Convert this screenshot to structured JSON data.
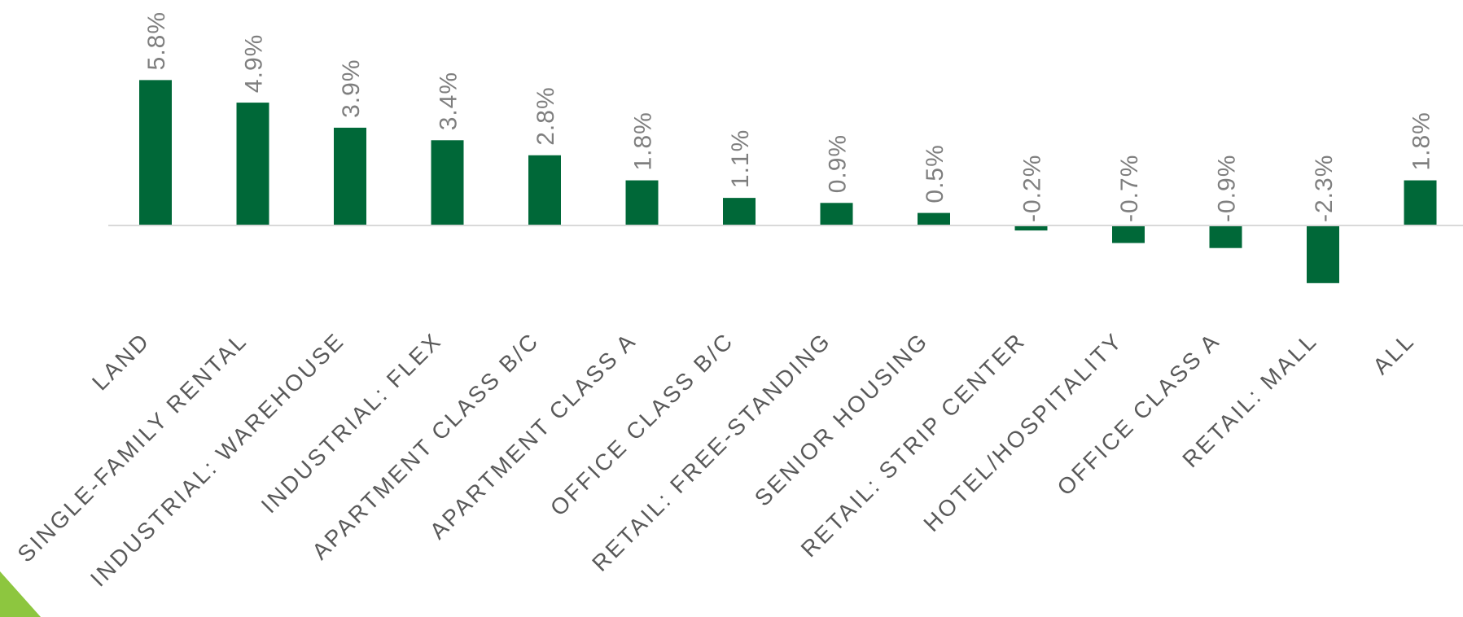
{
  "chart_data": {
    "type": "bar",
    "categories": [
      "LAND",
      "SINGLE-FAMILY RENTAL",
      "INDUSTRIAL: WAREHOUSE",
      "INDUSTRIAL: FLEX",
      "APARTMENT CLASS B/C",
      "APARTMENT CLASS A",
      "OFFICE CLASS B/C",
      "RETAIL: FREE-STANDING",
      "SENIOR HOUSING",
      "RETAIL: STRIP CENTER",
      "HOTEL/HOSPITALITY",
      "OFFICE CLASS A",
      "RETAIL: MALL",
      "ALL"
    ],
    "values": [
      5.8,
      4.9,
      3.9,
      3.4,
      2.8,
      1.8,
      1.1,
      0.9,
      0.5,
      -0.2,
      -0.7,
      -0.9,
      -2.3,
      1.8
    ],
    "data_labels": [
      "5.8%",
      "4.9%",
      "3.9%",
      "3.4%",
      "2.8%",
      "1.8%",
      "1.1%",
      "0.9%",
      "0.5%",
      "-0.2%",
      "-0.7%",
      "-0.9%",
      "-2.3%",
      "1.8%"
    ],
    "title": "",
    "xlabel": "",
    "ylabel": "",
    "ylim": [
      -2.3,
      5.8
    ],
    "grid": false,
    "legend": "none"
  },
  "colors": {
    "bar": "#006838",
    "label": "#7f7f7f",
    "tick": "#595959",
    "baseline": "#d9d9d9",
    "corner_accent": "#8dc63f"
  }
}
